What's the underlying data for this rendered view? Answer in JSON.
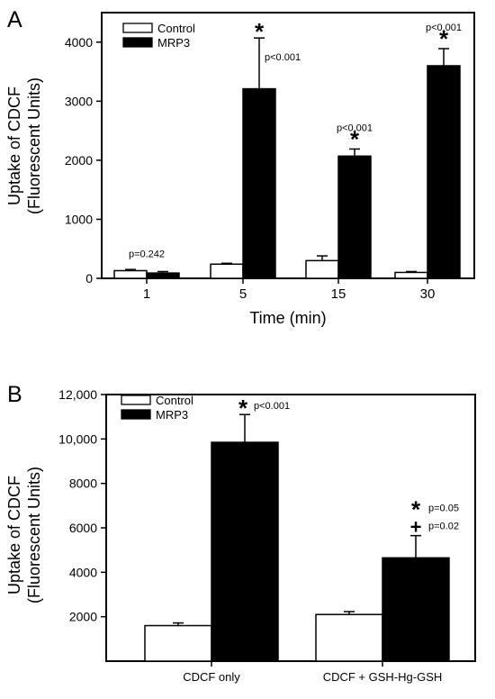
{
  "chart_data": [
    {
      "panel_label": "A",
      "type": "bar",
      "ylabel_lines": [
        "Uptake of CDCF",
        "(Fluorescent Units)"
      ],
      "xlabel": "Time (min)",
      "categories": [
        "1",
        "5",
        "15",
        "30"
      ],
      "ylim": [
        0,
        4500
      ],
      "yticks": [
        0,
        1000,
        2000,
        3000,
        4000
      ],
      "ytick_labels": [
        "0",
        "1000",
        "2000",
        "3000",
        "4000"
      ],
      "legend_position": "top-left",
      "series": [
        {
          "name": "Control",
          "fill": "#ffffff",
          "values": [
            130,
            240,
            300,
            100
          ],
          "errors": [
            20,
            15,
            80,
            15
          ]
        },
        {
          "name": "MRP3",
          "fill": "#000000",
          "values": [
            90,
            3210,
            2070,
            3600
          ],
          "errors": [
            25,
            860,
            120,
            290
          ]
        }
      ],
      "annotations": [
        {
          "category": 0,
          "p": "p=0.242",
          "star": ""
        },
        {
          "category": 1,
          "p": "p<0.001",
          "star": "*"
        },
        {
          "category": 2,
          "p": "p<0.001",
          "star": "*"
        },
        {
          "category": 3,
          "p": "p<0.001",
          "star": "*"
        }
      ]
    },
    {
      "panel_label": "B",
      "type": "bar",
      "ylabel_lines": [
        "Uptake of CDCF",
        "(Fluorescent Units)"
      ],
      "xlabel": "",
      "categories": [
        "CDCF only",
        "CDCF + GSH-Hg-GSH"
      ],
      "ylim": [
        0,
        12000
      ],
      "yticks": [
        2000,
        4000,
        6000,
        8000,
        10000,
        12000
      ],
      "ytick_labels": [
        "2000",
        "4000",
        "6000",
        "8000",
        "10,000",
        "12,000"
      ],
      "legend_position": "top-left",
      "series": [
        {
          "name": "Control",
          "fill": "#ffffff",
          "values": [
            1600,
            2100
          ],
          "errors": [
            120,
            130
          ]
        },
        {
          "name": "MRP3",
          "fill": "#000000",
          "values": [
            9850,
            4650
          ],
          "errors": [
            1250,
            1000
          ]
        }
      ],
      "annotations": [
        {
          "category": 0,
          "p": "p<0.001",
          "star": "*"
        },
        {
          "category": 1,
          "p": "p=0.05",
          "star": "*",
          "p2": "p=0.02",
          "mark2": "+"
        }
      ]
    }
  ]
}
